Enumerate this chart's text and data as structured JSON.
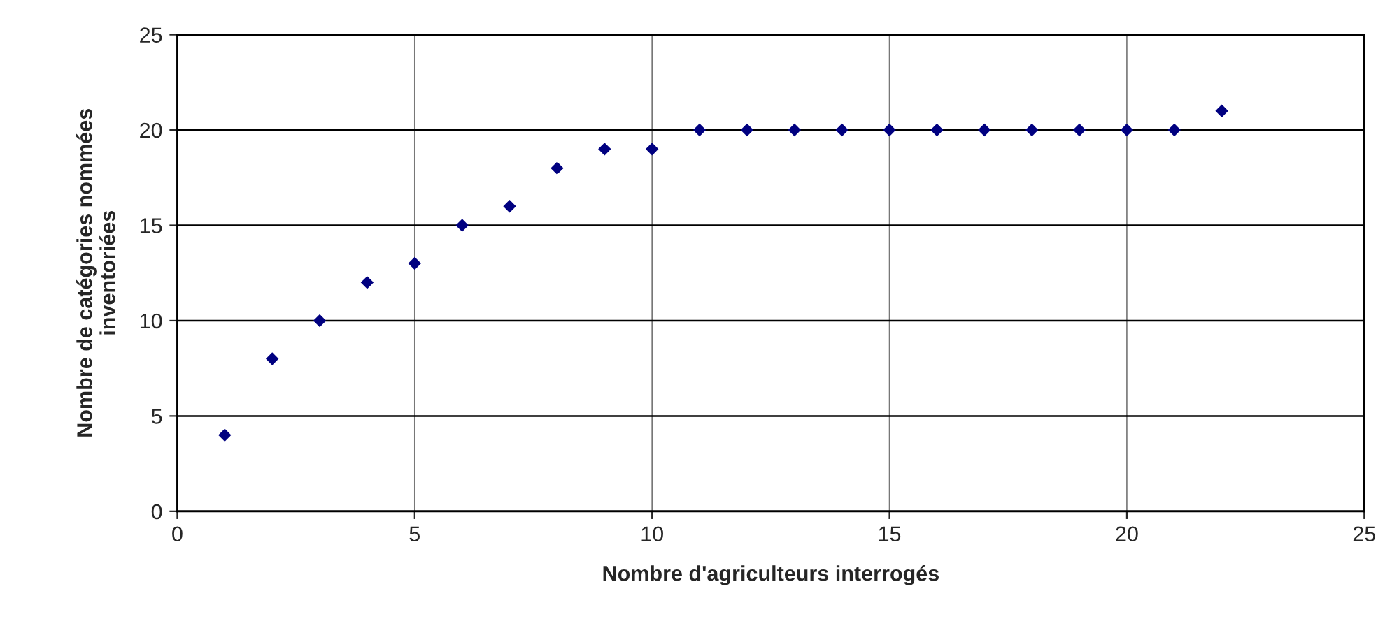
{
  "chart_data": {
    "type": "scatter",
    "xlabel": "Nombre d'agriculteurs interrogés",
    "ylabel": "Nombre de catégories nommées\ninventoriées",
    "x": [
      1,
      2,
      3,
      4,
      5,
      6,
      7,
      8,
      9,
      10,
      11,
      12,
      13,
      14,
      15,
      16,
      17,
      18,
      19,
      20,
      21,
      22
    ],
    "series": [
      {
        "color": "#000080",
        "values": [
          4,
          8,
          10,
          12,
          13,
          15,
          16,
          18,
          19,
          19,
          20,
          20,
          20,
          20,
          20,
          20,
          20,
          20,
          20,
          20,
          20,
          21
        ]
      }
    ],
    "xlim": [
      0,
      25
    ],
    "xticks": [
      0,
      5,
      10,
      15,
      20,
      25
    ],
    "ylim": [
      0,
      25
    ],
    "yticks": [
      0,
      5,
      10,
      15,
      20,
      25
    ],
    "grid": true,
    "marker": "diamond"
  }
}
